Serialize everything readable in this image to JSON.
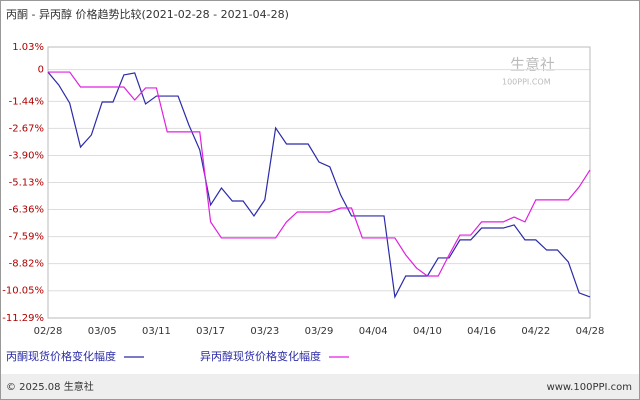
{
  "chart_data": {
    "type": "line",
    "title": "丙酮 - 异丙醇 价格趋势比较(2021-02-28 - 2021-04-28)",
    "watermark": "生意社",
    "watermark_sub": "100PPI.COM",
    "footer_left": "© 2025.08 生意社",
    "footer_right": "www.100PPI.com",
    "categories": [
      "02/28",
      null,
      null,
      null,
      null,
      "03/05",
      null,
      null,
      null,
      null,
      "03/11",
      null,
      null,
      null,
      null,
      "03/17",
      null,
      null,
      null,
      null,
      "03/23",
      null,
      null,
      null,
      null,
      "03/29",
      null,
      null,
      null,
      null,
      "04/04",
      null,
      null,
      null,
      null,
      "04/10",
      null,
      null,
      null,
      null,
      "04/16",
      null,
      null,
      null,
      null,
      "04/22",
      null,
      null,
      null,
      null,
      "04/28"
    ],
    "series": [
      {
        "name": "丙酮现货价格变化幅度",
        "color": "#2b2ba8",
        "values": [
          -0.11,
          -0.7,
          -1.52,
          -3.52,
          -2.97,
          -1.47,
          -1.47,
          -0.24,
          -0.15,
          -1.56,
          -1.2,
          -1.2,
          -1.2,
          -2.52,
          -3.65,
          -6.15,
          -5.38,
          -5.97,
          -5.97,
          -6.65,
          -5.92,
          -2.65,
          -3.38,
          -3.38,
          -3.38,
          -4.2,
          -4.42,
          -5.7,
          -6.65,
          -6.65,
          -6.65,
          -6.65,
          -10.33,
          -9.38,
          -9.38,
          -9.38,
          -8.56,
          -8.56,
          -7.74,
          -7.74,
          -7.2,
          -7.2,
          -7.2,
          -7.06,
          -7.74,
          -7.74,
          -8.2,
          -8.2,
          -8.74,
          -10.15,
          -10.33
        ]
      },
      {
        "name": "异丙醇现货价格变化幅度",
        "color": "#e020e0",
        "values": [
          -0.11,
          -0.11,
          -0.11,
          -0.79,
          -0.79,
          -0.79,
          -0.79,
          -0.79,
          -1.38,
          -0.83,
          -0.83,
          -2.83,
          -2.83,
          -2.83,
          -2.83,
          -6.92,
          -7.65,
          -7.65,
          -7.65,
          -7.65,
          -7.65,
          -7.65,
          -6.92,
          -6.47,
          -6.47,
          -6.47,
          -6.47,
          -6.29,
          -6.29,
          -7.65,
          -7.65,
          -7.65,
          -7.65,
          -8.42,
          -9.02,
          -9.38,
          -9.38,
          -8.42,
          -7.52,
          -7.52,
          -6.92,
          -6.92,
          -6.92,
          -6.7,
          -6.92,
          -5.92,
          -5.92,
          -5.92,
          -5.92,
          -5.33,
          -4.56
        ]
      }
    ],
    "ylim": [
      -11.29,
      1.03
    ],
    "yticks": [
      {
        "value": 1.03,
        "label": "1.03%"
      },
      0,
      {
        "value": -1.44,
        "label": "-1.44%"
      },
      {
        "value": -2.67,
        "label": "-2.67%"
      },
      {
        "value": -3.9,
        "label": "-3.90%"
      },
      {
        "value": -5.13,
        "label": "-5.13%"
      },
      {
        "value": -6.36,
        "label": "-6.36%"
      },
      {
        "value": -7.59,
        "label": "-7.59%"
      },
      {
        "value": -8.82,
        "label": "-8.82%"
      },
      {
        "value": -10.05,
        "label": "-10.05%"
      },
      {
        "value": -11.29,
        "label": "-11.29%"
      }
    ],
    "grid": true
  }
}
